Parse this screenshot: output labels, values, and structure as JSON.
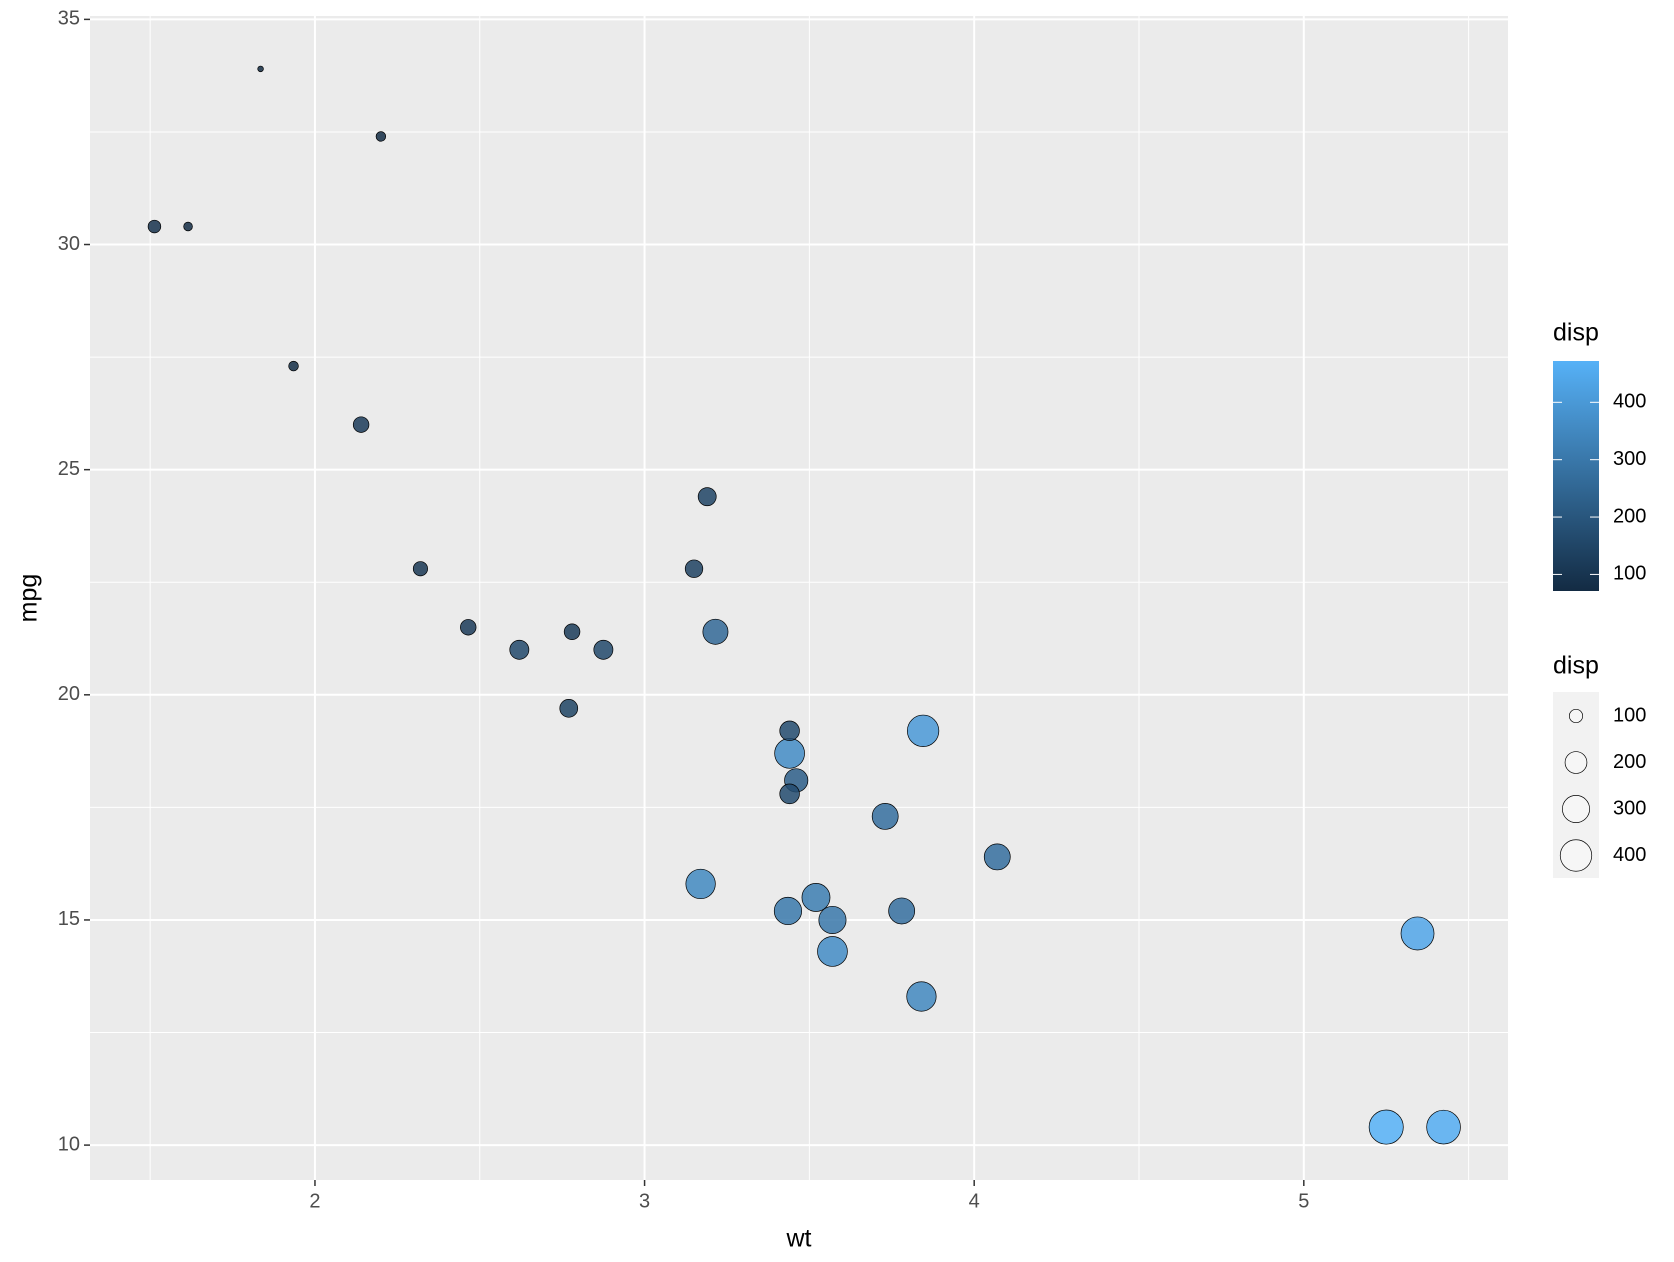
{
  "chart_data": {
    "type": "scatter",
    "x_label": "wt",
    "y_label": "mpg",
    "x": [
      2.62,
      2.875,
      2.32,
      3.215,
      3.44,
      3.46,
      3.57,
      3.19,
      3.15,
      3.44,
      3.44,
      4.07,
      3.73,
      3.78,
      5.25,
      5.424,
      5.345,
      2.2,
      1.615,
      1.835,
      2.465,
      3.52,
      3.435,
      3.84,
      3.845,
      1.935,
      2.14,
      1.513,
      3.17,
      2.77,
      3.57,
      2.78
    ],
    "values": [
      21.0,
      21.0,
      22.8,
      21.4,
      18.7,
      18.1,
      14.3,
      24.4,
      22.8,
      19.2,
      17.8,
      16.4,
      17.3,
      15.2,
      10.4,
      10.4,
      14.7,
      32.4,
      30.4,
      33.9,
      21.5,
      15.5,
      15.2,
      13.3,
      19.2,
      27.3,
      26.0,
      30.4,
      15.8,
      19.7,
      15.0,
      21.4
    ],
    "disp": [
      160,
      160,
      108,
      258,
      360,
      225,
      360,
      146.7,
      140.8,
      167.6,
      167.6,
      275.8,
      275.8,
      275.8,
      472,
      460,
      440,
      78.7,
      75.7,
      71.1,
      120.1,
      318,
      304,
      350,
      400,
      79,
      120.3,
      95.1,
      351,
      145,
      301,
      121
    ],
    "xlim": [
      1.3175,
      5.6195
    ],
    "ylim": [
      9.225,
      35.075
    ],
    "xticks": [
      2,
      3,
      4,
      5
    ],
    "yticks": [
      10,
      15,
      20,
      25,
      30,
      35
    ],
    "grid": true,
    "color_low": "#132B43",
    "color_high": "#56B1F7",
    "color_legend": {
      "title": "disp",
      "ticks": [
        100,
        200,
        300,
        400
      ]
    },
    "size_legend": {
      "title": "disp",
      "breaks": [
        100,
        200,
        300,
        400
      ]
    }
  }
}
